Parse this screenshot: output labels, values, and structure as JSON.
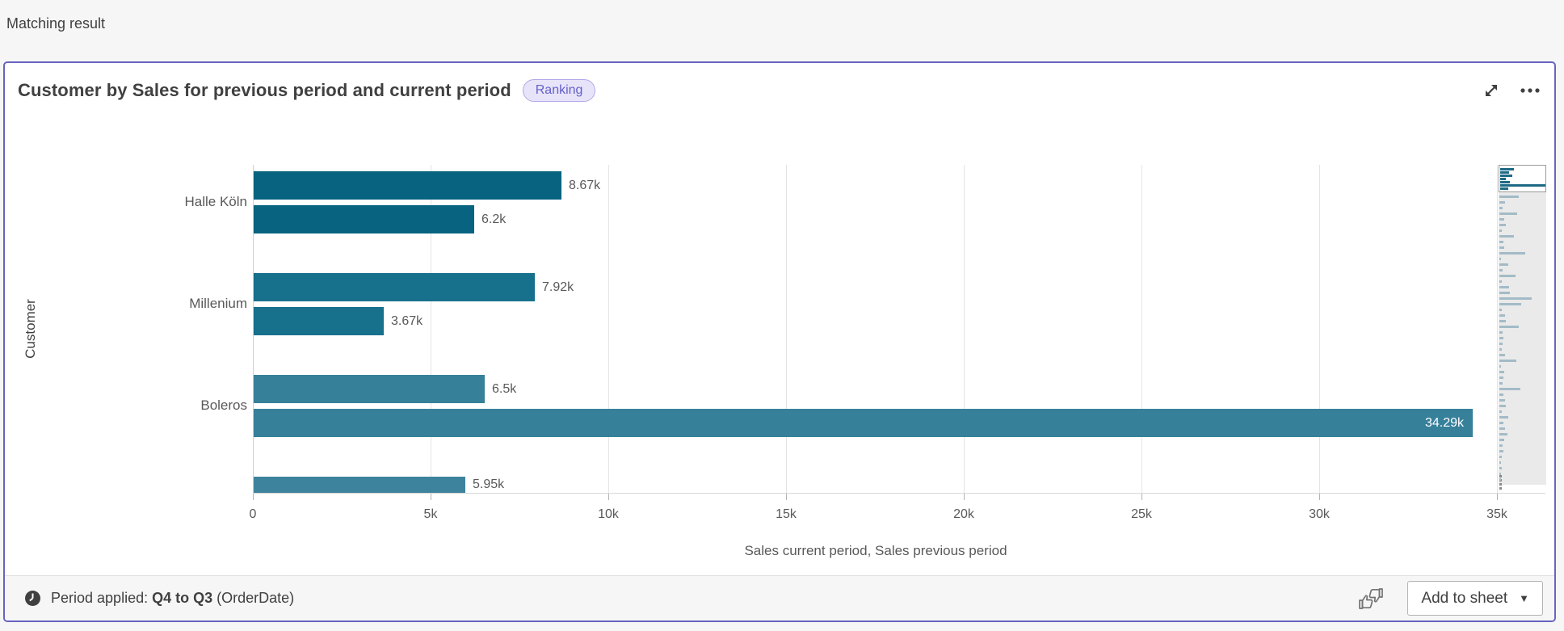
{
  "page": {
    "heading": "Matching result"
  },
  "card": {
    "title": "Customer by Sales for previous period and current period",
    "badge": "Ranking",
    "accent_color": "#6864c0",
    "footer": {
      "period_label": "Period applied:",
      "period_value": "Q4 to Q3",
      "period_suffix": "(OrderDate)",
      "add_button": "Add to sheet",
      "caret_glyph": "▼"
    },
    "icons": {
      "expand": "fullscreen-expand-arrows",
      "more": "ellipsis-menu",
      "clock": "clock-filled",
      "feedback": "thumbs-up-down"
    }
  },
  "chart_data": {
    "type": "bar",
    "orientation": "horizontal",
    "title": "Customer by Sales for previous period and current period",
    "xlabel": "Sales current period, Sales previous period",
    "ylabel": "Customer",
    "series_names": [
      "Sales current period",
      "Sales previous period"
    ],
    "xlim": [
      0,
      35000
    ],
    "x_ticks": [
      "0",
      "5k",
      "10k",
      "15k",
      "20k",
      "25k",
      "30k",
      "35k"
    ],
    "x_tick_values": [
      0,
      5000,
      10000,
      15000,
      20000,
      25000,
      30000,
      35000
    ],
    "grid": true,
    "legend": false,
    "groups": [
      {
        "category": "Halle Köln",
        "color": "#07637f",
        "bars": [
          {
            "series": "Sales current period",
            "value": 8670,
            "label": "8.67k"
          },
          {
            "series": "Sales previous period",
            "value": 6200,
            "label": "6.2k"
          }
        ]
      },
      {
        "category": "Millenium",
        "color": "#17708c",
        "bars": [
          {
            "series": "Sales current period",
            "value": 7920,
            "label": "7.92k"
          },
          {
            "series": "Sales previous period",
            "value": 3670,
            "label": "3.67k"
          }
        ]
      },
      {
        "category": "Boleros",
        "color": "#36809a",
        "bars": [
          {
            "series": "Sales current period",
            "value": 6500,
            "label": "6.5k"
          },
          {
            "series": "Sales previous period",
            "value": 34290,
            "label": "34.29k",
            "label_inside": true
          }
        ]
      },
      {
        "category": "",
        "color": "#3d839d",
        "bars": [
          {
            "series": "Sales current period",
            "value": 5950,
            "label": "5.95k",
            "clipped": true
          }
        ]
      }
    ]
  },
  "minimap": {
    "viewport_bar_widths_pct": [
      30,
      20,
      26,
      12,
      22,
      100,
      18
    ],
    "bar_widths_pct": [
      42,
      12,
      8,
      40,
      10,
      15,
      6,
      32,
      9,
      11,
      58,
      4,
      20,
      7,
      36,
      5,
      22,
      24,
      72,
      48,
      6,
      12,
      14,
      42,
      8,
      9,
      7,
      5,
      12,
      38,
      3,
      11,
      9,
      7,
      46,
      9,
      12,
      15,
      5,
      20,
      9,
      13,
      17,
      11,
      7,
      9,
      5,
      3,
      5,
      3,
      3
    ]
  }
}
